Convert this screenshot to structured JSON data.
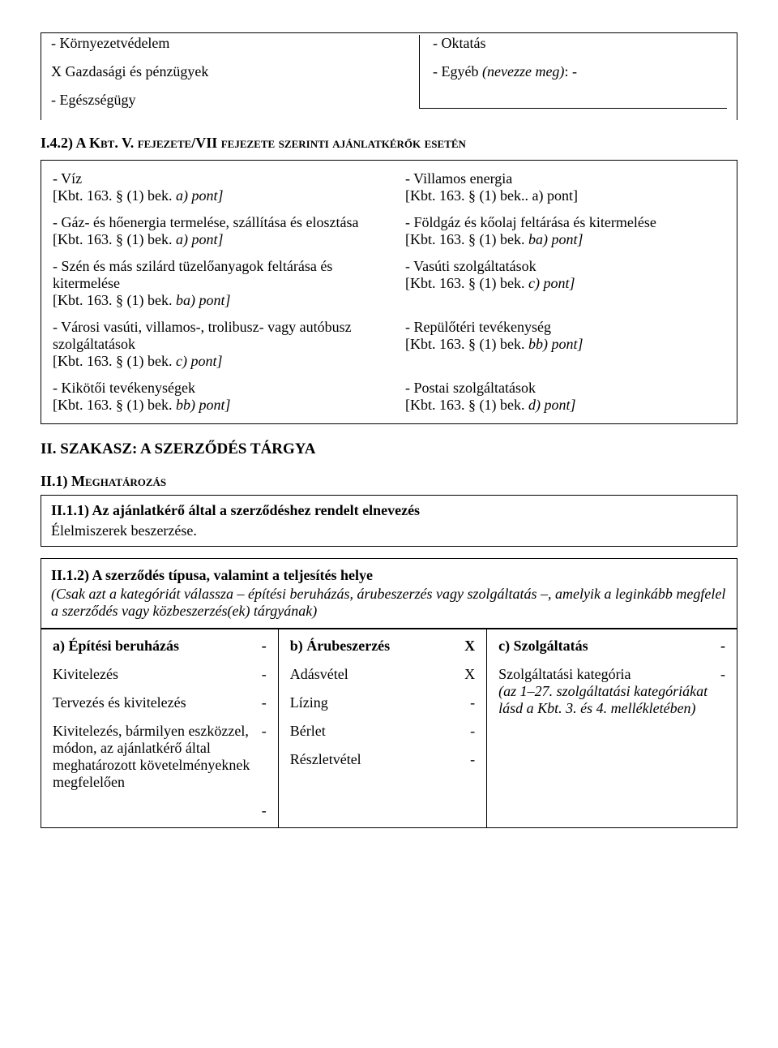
{
  "top": {
    "l1": "- Környezetvédelem",
    "r1": "- Oktatás",
    "l2": "X Gazdasági és pénzügyek",
    "r2_pre": "- Egyéb ",
    "r2_it": "(nevezze meg)",
    "r2_post": ": -",
    "l3": "- Egészségügy"
  },
  "sec142": {
    "pre": "I.4.2) A K",
    "sc": "bt",
    "mid": ". V. ",
    "sc2": "fejezete",
    "mid2": "/VII ",
    "sc3": "fejezete szerinti ajánlatkérők esetén"
  },
  "ut": {
    "rows": [
      {
        "l": [
          "- Víz",
          "[Kbt. 163. § (1) bek. a) pont]"
        ],
        "r": [
          "- Villamos energia",
          "[Kbt. 163. § (1) bek.. a) pont]"
        ]
      },
      {
        "l": [
          "- Gáz- és hőenergia termelése, szállítása és elosztása",
          "[Kbt. 163. § (1) bek. a) pont]"
        ],
        "r": [
          "- Földgáz és kőolaj feltárása és kitermelése",
          "[Kbt. 163. § (1) bek. ba) pont]"
        ]
      },
      {
        "l": [
          "- Szén és más szilárd tüzelőanyagok feltárása és kitermelése",
          "[Kbt. 163. § (1) bek. ba) pont]"
        ],
        "r": [
          "- Vasúti szolgáltatások",
          "[Kbt. 163. § (1) bek. c) pont]"
        ]
      },
      {
        "l": [
          "- Városi vasúti, villamos-, trolibusz- vagy autóbusz szolgáltatások",
          "[Kbt. 163. § (1) bek. c) pont]"
        ],
        "r": [
          "- Repülőtéri tevékenység",
          "[Kbt. 163. § (1) bek. bb) pont]"
        ]
      },
      {
        "l": [
          "- Kikötői tevékenységek",
          "[Kbt. 163. § (1) bek. bb) pont]"
        ],
        "r": [
          "- Postai szolgáltatások",
          "[Kbt. 163. § (1) bek. d) pont]"
        ]
      }
    ]
  },
  "h2": "II. SZAKASZ: A SZERZŐDÉS TÁRGYA",
  "ii1_pre": "II.1) M",
  "ii1_sc": "eghatározás",
  "ii11": {
    "title": "II.1.1) Az ajánlatkérő által a szerződéshez rendelt elnevezés",
    "body": "Élelmiszerek beszerzése."
  },
  "ii12": {
    "title": "II.1.2) A szerződés típusa, valamint a teljesítés helye",
    "par": "(Csak azt a kategóriát válassza – építési beruházás, árubeszerzés vagy szolgáltatás –, amelyik a leginkább megfelel a szerződés vagy közbeszerzés(ek) tárgyának)"
  },
  "procure": {
    "colA": {
      "title": "a) Építési beruházás",
      "mark": "-",
      "items": [
        {
          "label": "Kivitelezés",
          "mark": "-"
        },
        {
          "label": "Tervezés és kivitelezés",
          "mark": "-"
        },
        {
          "label": "Kivitelezés, bármilyen eszközzel, módon, az ajánlatkérő által meghatározott követelményeknek megfelelően",
          "mark": "-",
          "trailing": "-"
        }
      ]
    },
    "colB": {
      "title": "b) Árubeszerzés",
      "mark": "X",
      "items": [
        {
          "label": "Adásvétel",
          "mark": "X"
        },
        {
          "label": "Lízing",
          "mark": "-"
        },
        {
          "label": "Bérlet",
          "mark": "-"
        },
        {
          "label": "Részletvétel",
          "mark": "-"
        }
      ]
    },
    "colC": {
      "title": "c) Szolgáltatás",
      "mark": "-",
      "line1": "Szolgáltatási kategória",
      "line1_mark": "-",
      "line2": "(az 1–27. szolgáltatási kategóriákat lásd a Kbt. 3. és 4. mellékletében)"
    }
  }
}
